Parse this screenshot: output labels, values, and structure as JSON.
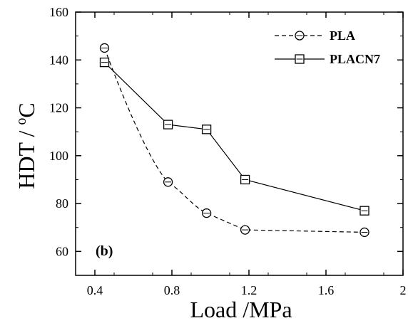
{
  "chart_data": {
    "type": "line",
    "xlabel": "Load /MPa",
    "ylabel_main": "HDT / ",
    "ylabel_sup": "o",
    "ylabel_unit": "C",
    "xlim": [
      0.3,
      2.0
    ],
    "ylim": [
      50,
      160
    ],
    "xticks": [
      0.4,
      0.8,
      1.2,
      1.6,
      2
    ],
    "xtick_labels": [
      "0.4",
      "0.8",
      "1.2",
      "1.6",
      "2"
    ],
    "yticks": [
      60,
      80,
      100,
      120,
      140,
      160
    ],
    "ytick_labels": [
      "60",
      "80",
      "100",
      "120",
      "140",
      "160"
    ],
    "grid": false,
    "legend_position": "top-right",
    "annotation": "(b)",
    "series": [
      {
        "name": "PLA",
        "marker": "circle",
        "line_style": "dashed",
        "x": [
          0.45,
          0.78,
          0.98,
          1.18,
          1.8
        ],
        "y": [
          145,
          89,
          76,
          69,
          68
        ]
      },
      {
        "name": "PLACN7",
        "marker": "square",
        "line_style": "solid",
        "x": [
          0.45,
          0.78,
          0.98,
          1.18,
          1.8
        ],
        "y": [
          139,
          113,
          111,
          90,
          77
        ]
      }
    ]
  }
}
